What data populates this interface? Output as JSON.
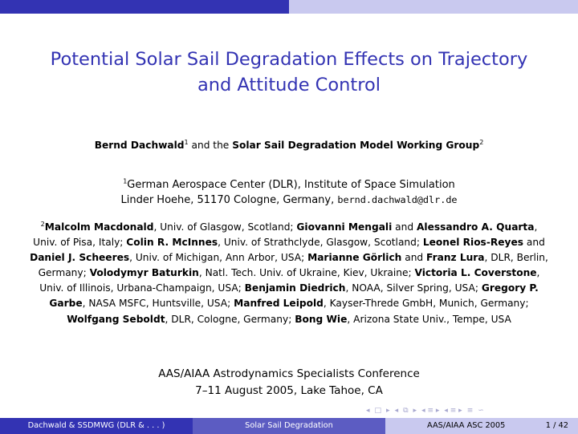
{
  "slide": {
    "title_line1": "Potential Solar Sail Degradation Effects on Trajectory",
    "title_line2": "and Attitude Control"
  },
  "authors": {
    "name1": "Bernd Dachwald",
    "sup1": "1",
    "connector": " and the ",
    "group_name": "Solar Sail Degradation Model Working Group",
    "sup2": "2"
  },
  "institute1": {
    "sup": "1",
    "line1": "German Aerospace Center (DLR), Institute of Space Simulation",
    "line2": "Linder Hoehe, 51170 Cologne, Germany, ",
    "email": "bernd.dachwald@dlr.de"
  },
  "group2": {
    "sup": "2",
    "parts": [
      {
        "b": "Malcolm Macdonald"
      },
      {
        "t": ", Univ. of Glasgow, Scotland; "
      },
      {
        "b": "Giovanni Mengali"
      },
      {
        "t": " and "
      },
      {
        "b": "Alessandro A. Quarta"
      },
      {
        "t": ", Univ. of Pisa, Italy; "
      },
      {
        "b": "Colin R. McInnes"
      },
      {
        "t": ", Univ. of Strathclyde, Glasgow, Scotland; "
      },
      {
        "b": "Leonel Rios-Reyes"
      },
      {
        "t": " and "
      },
      {
        "b": "Daniel J. Scheeres"
      },
      {
        "t": ", Univ. of Michigan, Ann Arbor, USA; "
      },
      {
        "b": "Marianne Görlich"
      },
      {
        "t": " and "
      },
      {
        "b": "Franz Lura"
      },
      {
        "t": ", DLR, Berlin, Germany; "
      },
      {
        "b": "Volodymyr Baturkin"
      },
      {
        "t": ", Natl. Tech. Univ. of Ukraine, Kiev, Ukraine; "
      },
      {
        "b": "Victoria L. Coverstone"
      },
      {
        "t": ", Univ. of Illinois, Urbana-Champaign, USA; "
      },
      {
        "b": "Benjamin Diedrich"
      },
      {
        "t": ", NOAA, Silver Spring, USA; "
      },
      {
        "b": "Gregory P. Garbe"
      },
      {
        "t": ", NASA MSFC, Huntsville, USA; "
      },
      {
        "b": "Manfred Leipold"
      },
      {
        "t": ", Kayser-Threde GmbH, Munich, Germany; "
      },
      {
        "b": "Wolfgang Seboldt"
      },
      {
        "t": ", DLR, Cologne, Germany; "
      },
      {
        "b": "Bong Wie"
      },
      {
        "t": ", Arizona State Univ., Tempe, USA"
      }
    ]
  },
  "conference": {
    "line1": "AAS/AIAA Astrodynamics Specialists Conference",
    "line2": "7–11 August 2005, Lake Tahoe, CA"
  },
  "footer": {
    "left": "Dachwald & SSDMWG  (DLR & . . . )",
    "center": "Solar Sail Degradation",
    "right": "AAS/AIAA ASC 2005",
    "page": "1 / 42"
  },
  "colors": {
    "theme_dark": "#3333b3",
    "theme_mid": "#5c5cc2",
    "theme_light": "#c9c9ef"
  },
  "nav_icons": [
    "nav-frame-prev-icon",
    "nav-frame-next-icon",
    "nav-subsection-prev-icon",
    "nav-subsection-next-icon",
    "nav-section-prev-icon",
    "nav-section-next-icon",
    "nav-align-icon",
    "nav-search-icon"
  ]
}
